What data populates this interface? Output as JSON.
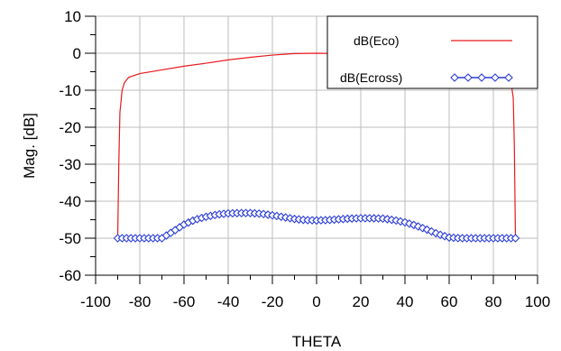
{
  "chart_data": {
    "type": "line",
    "title": "",
    "xlabel": "THETA",
    "ylabel": "Mag. [dB]",
    "xlim": [
      -100,
      100
    ],
    "ylim": [
      -60,
      10
    ],
    "xticks": [
      -100,
      -80,
      -60,
      -40,
      -20,
      0,
      20,
      40,
      60,
      80,
      100
    ],
    "yticks": [
      -60,
      -50,
      -40,
      -30,
      -20,
      -10,
      0,
      10
    ],
    "grid": true,
    "legend_position": "top-right",
    "series": [
      {
        "name": "dB(Eco)",
        "color": "#e8191c",
        "marker": "none",
        "x": [
          -90,
          -89.5,
          -89,
          -88,
          -87,
          -85,
          -80,
          -70,
          -60,
          -50,
          -40,
          -30,
          -20,
          -10,
          0,
          10,
          20,
          30,
          40,
          50,
          60,
          70,
          80,
          85,
          87,
          88,
          89,
          89.5,
          90
        ],
        "y": [
          -50,
          -30,
          -16,
          -10,
          -8,
          -6.5,
          -5.5,
          -4.5,
          -3.5,
          -2.7,
          -1.8,
          -1.1,
          -0.5,
          -0.1,
          0,
          -0.1,
          -0.4,
          -0.9,
          -1.6,
          -2.3,
          -3.1,
          -4,
          -5.2,
          -5.8,
          -6.2,
          -8,
          -12,
          -25,
          -50
        ]
      },
      {
        "name": "dB(Ecross)",
        "color": "#2a3cd6",
        "marker": "diamond",
        "x": [
          -90,
          -85,
          -80,
          -75,
          -70,
          -65,
          -60,
          -55,
          -50,
          -45,
          -40,
          -35,
          -30,
          -25,
          -20,
          -15,
          -10,
          -5,
          0,
          5,
          10,
          15,
          20,
          25,
          30,
          35,
          40,
          45,
          50,
          55,
          60,
          65,
          70,
          75,
          80,
          85,
          90
        ],
        "y": [
          -50,
          -50,
          -50,
          -50,
          -50,
          -48.2,
          -46.3,
          -45,
          -44.2,
          -43.6,
          -43.3,
          -43.2,
          -43.2,
          -43.4,
          -43.8,
          -44.3,
          -44.8,
          -45.1,
          -45.2,
          -45.1,
          -44.9,
          -44.7,
          -44.6,
          -44.6,
          -44.7,
          -45.1,
          -45.7,
          -46.6,
          -47.7,
          -48.9,
          -49.8,
          -50,
          -50,
          -50,
          -50,
          -50,
          -50
        ]
      }
    ]
  }
}
